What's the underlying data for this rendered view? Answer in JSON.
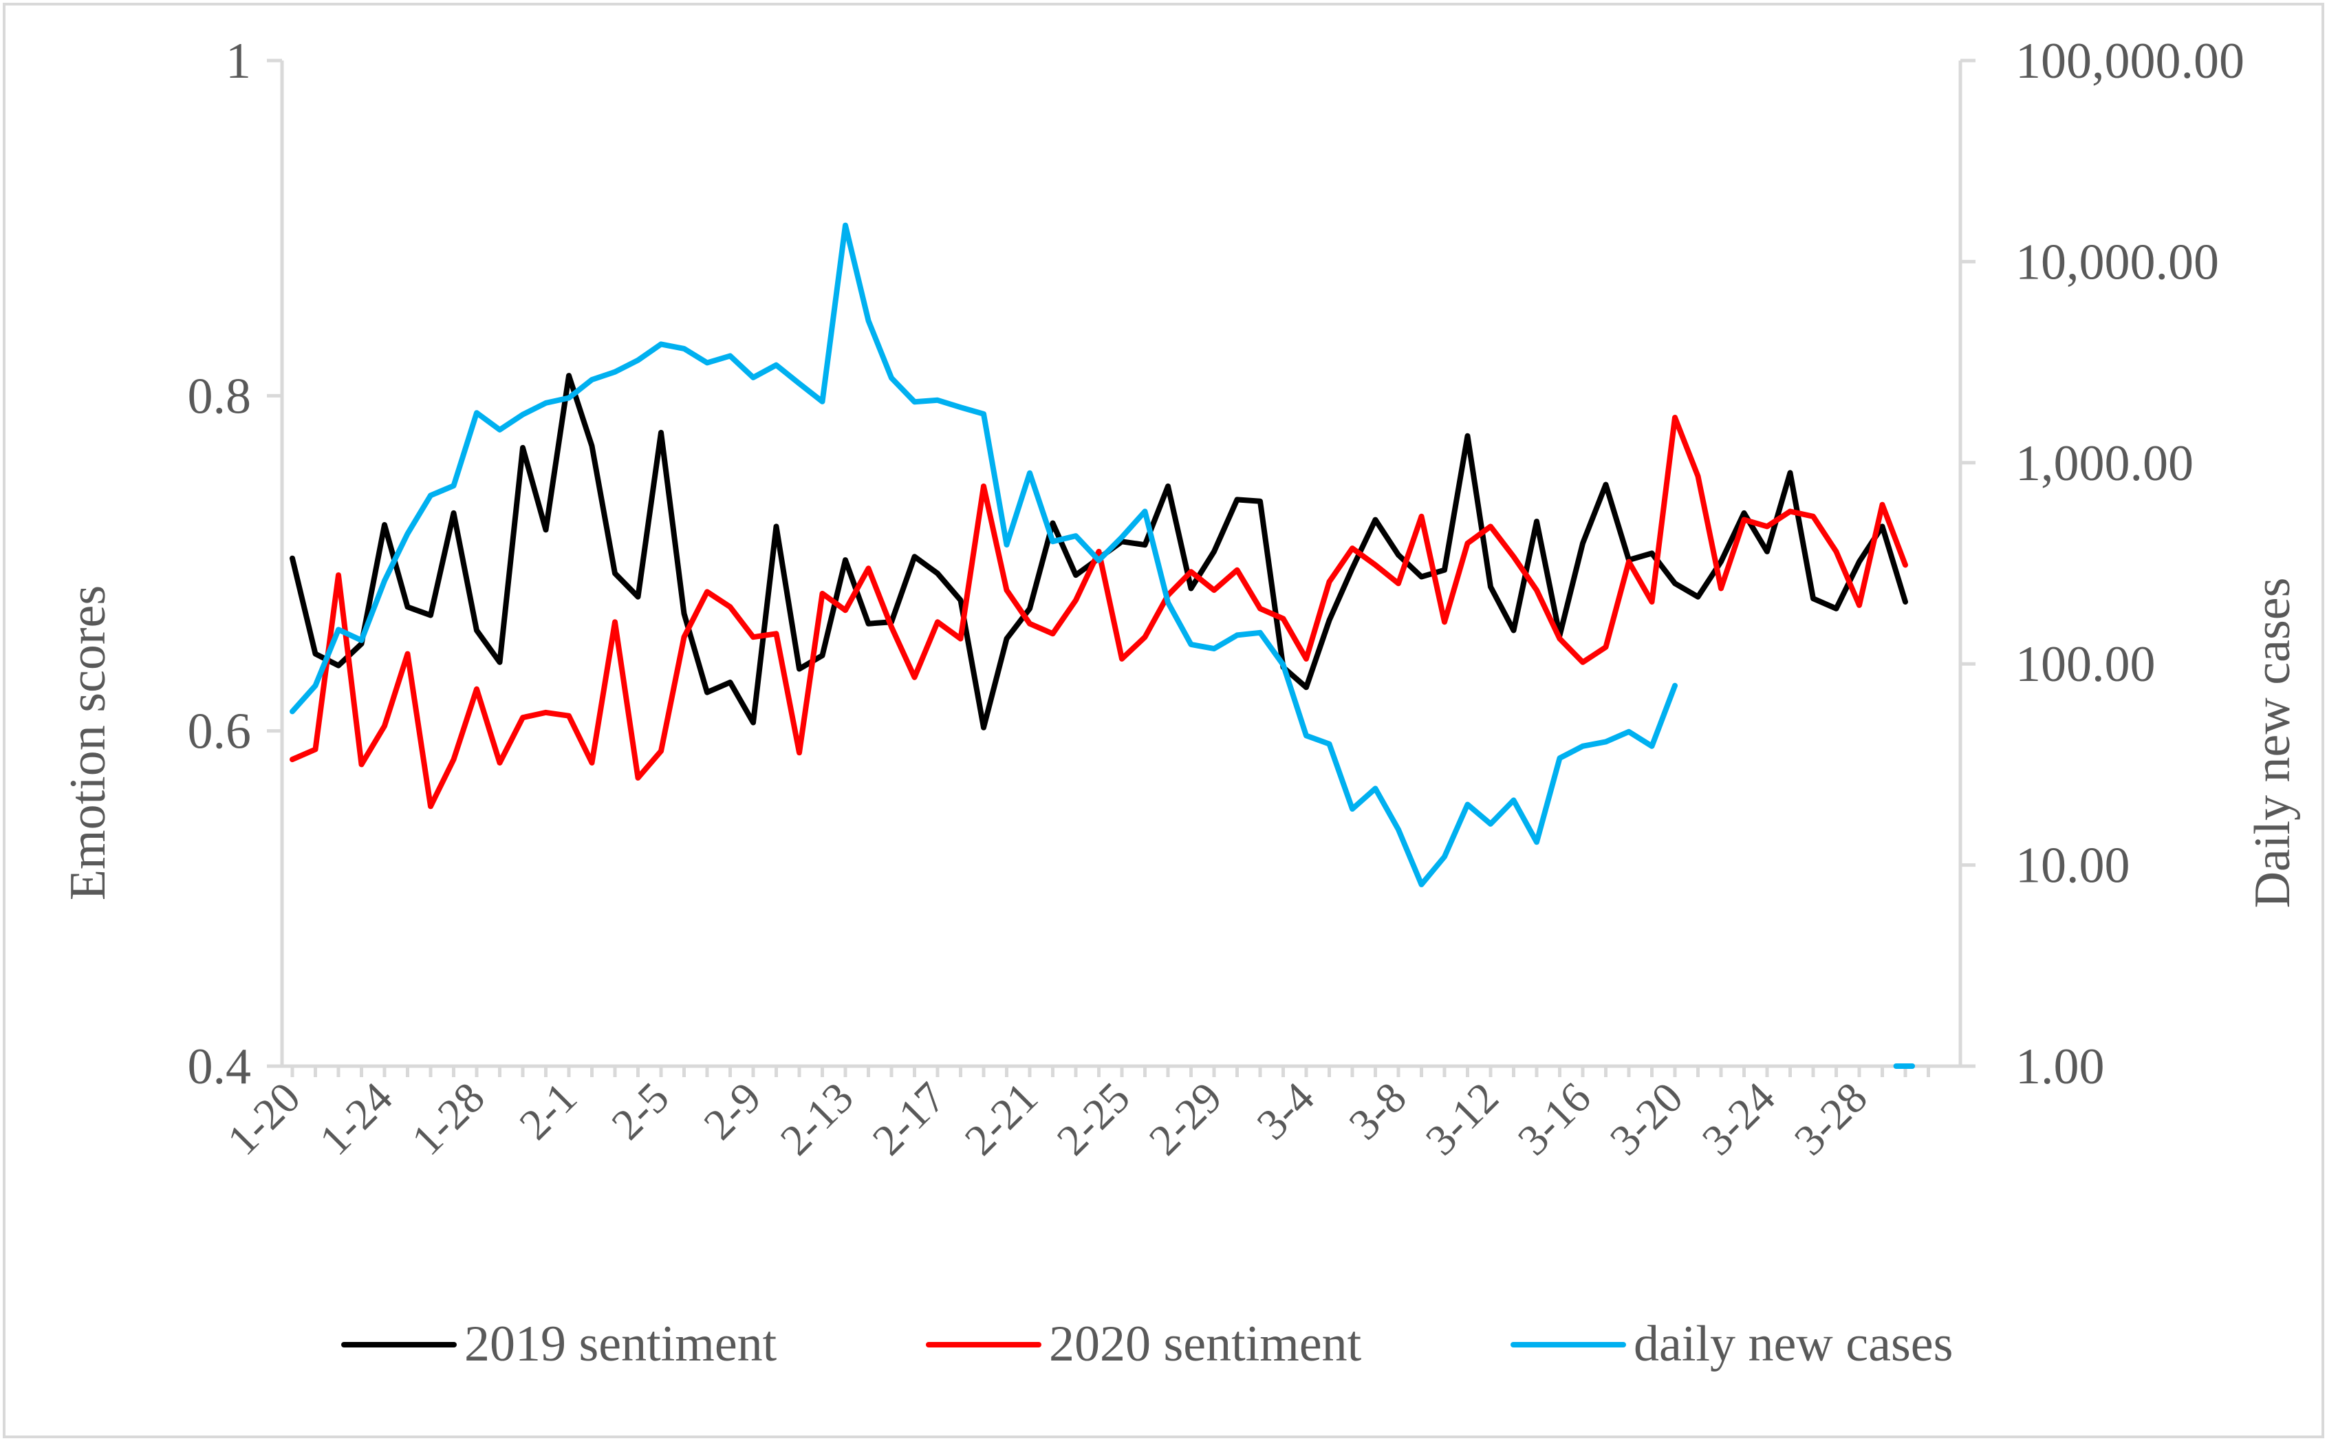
{
  "chart_data": {
    "type": "line",
    "title": "",
    "ylabel": "Emotion scores",
    "y2label": "Daily new cases",
    "ylim": [
      0.4,
      1.0
    ],
    "y2lim": [
      1,
      100000
    ],
    "y2scale": "log",
    "yticks": [
      0.4,
      0.6,
      0.8,
      1.0
    ],
    "ytick_labels": [
      "0.4",
      "0.6",
      "0.8",
      "1"
    ],
    "y2ticks": [
      1,
      10,
      100,
      1000,
      10000,
      100000
    ],
    "y2tick_labels": [
      "1.00",
      "10.00",
      "100.00",
      "1,000.00",
      "10,000.00",
      "100,000.00"
    ],
    "x_count": 72,
    "xtick_labels": [
      "1-20",
      "1-24",
      "1-28",
      "2-1",
      "2-5",
      "2-9",
      "2-13",
      "2-17",
      "2-21",
      "2-25",
      "2-29",
      "3-4",
      "3-8",
      "3-12",
      "3-16",
      "3-20",
      "3-24",
      "3-28"
    ],
    "xtick_indices": [
      0,
      4,
      8,
      12,
      16,
      20,
      24,
      28,
      32,
      36,
      40,
      44,
      48,
      52,
      56,
      60,
      64,
      68
    ],
    "legend": "bottom",
    "series": [
      {
        "name": "2019 sentiment",
        "axis": "left",
        "color": "#000000",
        "values": [
          0.703,
          0.646,
          0.639,
          0.652,
          0.723,
          0.674,
          0.669,
          0.73,
          0.66,
          0.641,
          0.769,
          0.72,
          0.812,
          0.77,
          0.694,
          0.68,
          0.778,
          0.67,
          0.623,
          0.629,
          0.605,
          0.722,
          0.637,
          0.645,
          0.702,
          0.664,
          0.665,
          0.704,
          0.694,
          0.678,
          0.602,
          0.655,
          0.673,
          0.724,
          0.693,
          0.703,
          0.713,
          0.711,
          0.746,
          0.685,
          0.707,
          0.738,
          0.737,
          0.638,
          0.626,
          0.666,
          0.697,
          0.726,
          0.705,
          0.692,
          0.696,
          0.776,
          0.686,
          0.66,
          0.725,
          0.657,
          0.712,
          0.747,
          0.702,
          0.706,
          0.688,
          0.68,
          0.701,
          0.73,
          0.707,
          0.754,
          0.679,
          0.673,
          0.701,
          0.722,
          0.677
        ]
      },
      {
        "name": "2020 sentiment",
        "axis": "left",
        "color": "#ff0000",
        "values": [
          0.583,
          0.589,
          0.693,
          0.58,
          0.603,
          0.646,
          0.555,
          0.583,
          0.625,
          0.581,
          0.608,
          0.611,
          0.609,
          0.581,
          0.665,
          0.572,
          0.588,
          0.656,
          0.683,
          0.674,
          0.656,
          0.658,
          0.587,
          0.682,
          0.672,
          0.697,
          0.662,
          0.632,
          0.665,
          0.655,
          0.746,
          0.684,
          0.664,
          0.658,
          0.678,
          0.707,
          0.643,
          0.656,
          0.681,
          0.695,
          0.684,
          0.696,
          0.673,
          0.667,
          0.643,
          0.689,
          0.709,
          0.699,
          0.688,
          0.728,
          0.665,
          0.712,
          0.722,
          0.704,
          0.684,
          0.655,
          0.641,
          0.65,
          0.701,
          0.677,
          0.787,
          0.752,
          0.685,
          0.726,
          0.722,
          0.731,
          0.728,
          0.707,
          0.675,
          0.735,
          0.699
        ]
      },
      {
        "name": "daily new cases",
        "axis": "right",
        "color": "#00b0f0",
        "values": [
          58,
          78,
          148,
          131,
          259,
          444,
          688,
          769,
          1771,
          1459,
          1737,
          1982,
          2102,
          2590,
          2829,
          3235,
          3887,
          3694,
          3143,
          3399,
          2656,
          3062,
          2478,
          2015,
          15152,
          5090,
          2641,
          2009,
          2048,
          1886,
          1749,
          391,
          889,
          406,
          433,
          327,
          427,
          573,
          202,
          125,
          119,
          139,
          143,
          99,
          44,
          40,
          19,
          24,
          15,
          8,
          11,
          20,
          16,
          21,
          13,
          34,
          39,
          41,
          46,
          39,
          78
        ]
      }
    ],
    "extra_marks": [
      {
        "series": "daily new cases",
        "x_start": 69.6,
        "x_end": 70.3,
        "value": 1
      }
    ]
  }
}
